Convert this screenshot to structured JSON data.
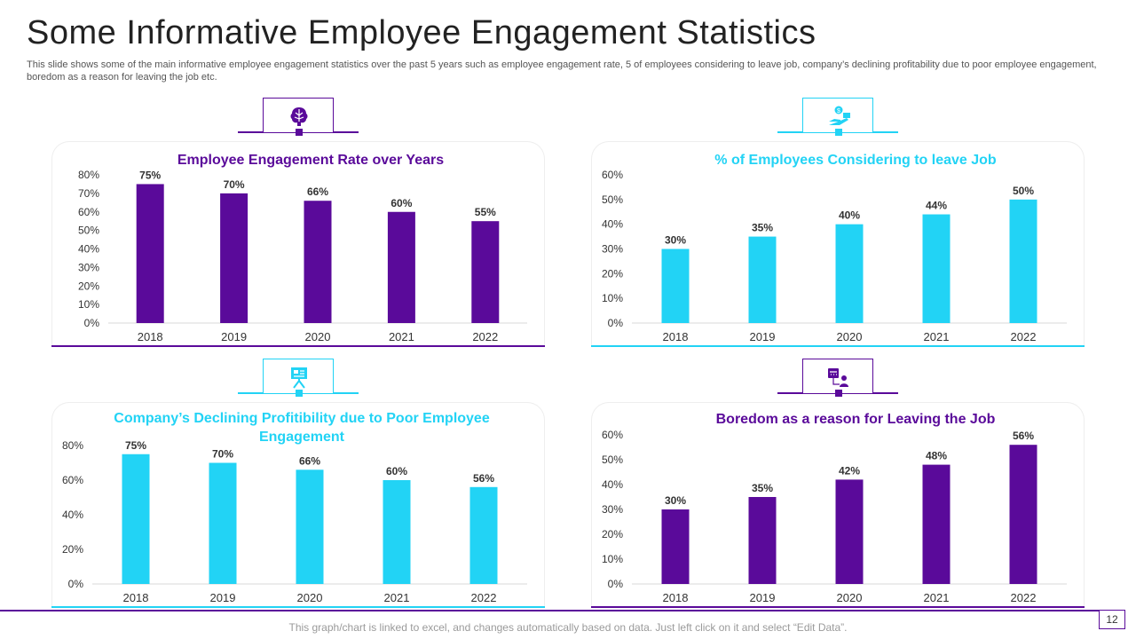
{
  "title": "Some Informative Employee Engagement Statistics",
  "subtitle": "This slide shows some of the main informative employee engagement statistics over the past 5 years such as employee engagement rate, 5 of employees considering to leave job, company’s declining profitability due to poor employee engagement, boredom as a reason for leaving the job etc.",
  "footer_note": "This graph/chart is linked to excel, and changes automatically based on data. Just left click on it and select “Edit Data”.",
  "page_number": "12",
  "colors": {
    "purple": "#5a0a9a",
    "cyan": "#22d3f5",
    "text": "#333333"
  },
  "icons": [
    "brain-icon",
    "money-hand-icon",
    "presentation-board-icon",
    "calendar-person-icon"
  ],
  "chart_data": [
    {
      "type": "bar",
      "title": "Employee Engagement Rate over Years",
      "categories": [
        "2018",
        "2019",
        "2020",
        "2021",
        "2022"
      ],
      "values": [
        75,
        70,
        66,
        60,
        55
      ],
      "labels": [
        "75%",
        "70%",
        "66%",
        "60%",
        "55%"
      ],
      "ylim": [
        0,
        80
      ],
      "yticks": [
        "0%",
        "10%",
        "20%",
        "30%",
        "40%",
        "50%",
        "60%",
        "70%",
        "80%"
      ],
      "color": "#5a0a9a",
      "title_color": "#5a0a9a",
      "accent": "#5a0a9a"
    },
    {
      "type": "bar",
      "title": "% of Employees Considering to leave Job",
      "categories": [
        "2018",
        "2019",
        "2020",
        "2021",
        "2022"
      ],
      "values": [
        30,
        35,
        40,
        44,
        50
      ],
      "labels": [
        "30%",
        "35%",
        "40%",
        "44%",
        "50%"
      ],
      "ylim": [
        0,
        60
      ],
      "yticks": [
        "0%",
        "10%",
        "20%",
        "30%",
        "40%",
        "50%",
        "60%"
      ],
      "color": "#22d3f5",
      "title_color": "#22d3f5",
      "accent": "#22d3f5"
    },
    {
      "type": "bar",
      "title": "Company’s Declining Profitibility due to Poor Employee Engagement",
      "categories": [
        "2018",
        "2019",
        "2020",
        "2021",
        "2022"
      ],
      "values": [
        75,
        70,
        66,
        60,
        56
      ],
      "labels": [
        "75%",
        "70%",
        "66%",
        "60%",
        "56%"
      ],
      "ylim": [
        0,
        80
      ],
      "yticks": [
        "0%",
        "20%",
        "40%",
        "60%",
        "80%"
      ],
      "color": "#22d3f5",
      "title_color": "#22d3f5",
      "accent": "#22d3f5"
    },
    {
      "type": "bar",
      "title": "Boredom as a reason for Leaving the Job",
      "categories": [
        "2018",
        "2019",
        "2020",
        "2021",
        "2022"
      ],
      "values": [
        30,
        35,
        42,
        48,
        56
      ],
      "labels": [
        "30%",
        "35%",
        "42%",
        "48%",
        "56%"
      ],
      "ylim": [
        0,
        60
      ],
      "yticks": [
        "0%",
        "10%",
        "20%",
        "30%",
        "40%",
        "50%",
        "60%"
      ],
      "color": "#5a0a9a",
      "title_color": "#5a0a9a",
      "accent": "#5a0a9a"
    }
  ]
}
